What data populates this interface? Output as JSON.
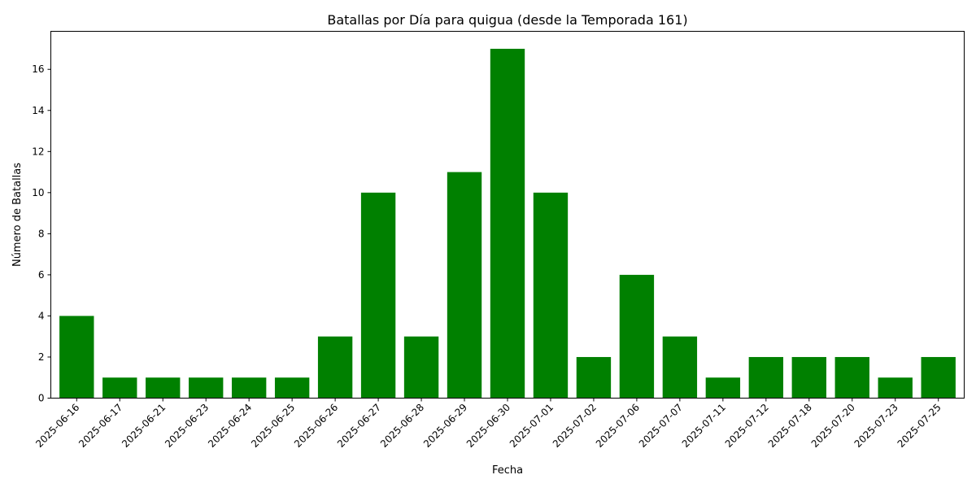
{
  "chart_data": {
    "type": "bar",
    "title": "Batallas por Día para quigua (desde la Temporada 161)",
    "xlabel": "Fecha",
    "ylabel": "Número de Batallas",
    "categories": [
      "2025-06-16",
      "2025-06-17",
      "2025-06-21",
      "2025-06-23",
      "2025-06-24",
      "2025-06-25",
      "2025-06-26",
      "2025-06-27",
      "2025-06-28",
      "2025-06-29",
      "2025-06-30",
      "2025-07-01",
      "2025-07-02",
      "2025-07-06",
      "2025-07-07",
      "2025-07-11",
      "2025-07-12",
      "2025-07-18",
      "2025-07-20",
      "2025-07-23",
      "2025-07-25"
    ],
    "values": [
      4,
      1,
      1,
      1,
      1,
      1,
      3,
      10,
      3,
      11,
      17,
      10,
      2,
      6,
      3,
      1,
      2,
      2,
      2,
      1,
      2
    ],
    "ylim": [
      0,
      17.85
    ],
    "yticks": [
      0,
      2,
      4,
      6,
      8,
      10,
      12,
      14,
      16
    ],
    "grid": false,
    "bar_color": "#008000"
  }
}
